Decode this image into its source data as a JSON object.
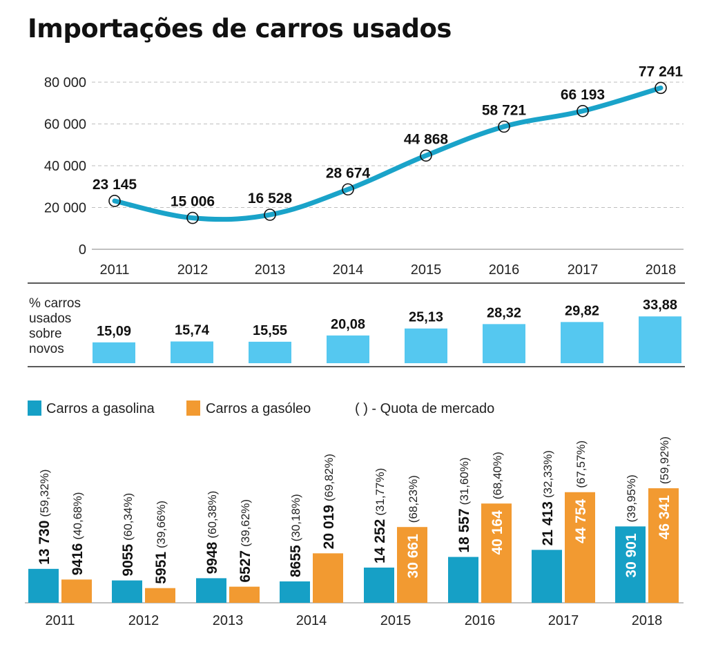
{
  "title": "Importações de carros usados",
  "colors": {
    "line": "#1aa3c9",
    "share_bar": "#55c8f0",
    "gasolina": "#16a0c6",
    "gasoleo": "#f29a31"
  },
  "chart_data": [
    {
      "type": "line",
      "name": "imports",
      "x": [
        "2011",
        "2012",
        "2013",
        "2014",
        "2015",
        "2016",
        "2017",
        "2018"
      ],
      "values": [
        23145,
        15006,
        16528,
        28674,
        44868,
        58721,
        66193,
        77241
      ],
      "labels": [
        "23 145",
        "15 006",
        "16 528",
        "28 674",
        "44 868",
        "58 721",
        "66 193",
        "77 241"
      ],
      "ylim": [
        0,
        80000
      ],
      "yticks": [
        "0",
        "20 000",
        "40 000",
        "60 000",
        "80 000"
      ],
      "grid": true
    },
    {
      "type": "bar",
      "name": "share",
      "label_lines": [
        "% carros",
        "usados",
        "sobre",
        "novos"
      ],
      "categories": [
        "2011",
        "2012",
        "2013",
        "2014",
        "2015",
        "2016",
        "2017",
        "2018"
      ],
      "values": [
        15.09,
        15.74,
        15.55,
        20.08,
        25.13,
        28.32,
        29.82,
        33.88
      ],
      "labels": [
        "15,09",
        "15,74",
        "15,55",
        "20,08",
        "25,13",
        "28,32",
        "29,82",
        "33,88"
      ]
    },
    {
      "type": "bar",
      "name": "fuel",
      "legend": [
        "Carros a gasolina",
        "Carros a gasóleo",
        "( ) - Quota de mercado"
      ],
      "categories": [
        "2011",
        "2012",
        "2013",
        "2014",
        "2015",
        "2016",
        "2017",
        "2018"
      ],
      "series": [
        {
          "name": "Carros a gasolina",
          "values": [
            13730,
            9055,
            9948,
            8655,
            14252,
            18557,
            21413,
            30901
          ],
          "labels": [
            "13 730",
            "9055",
            "9948",
            "8655",
            "14 252",
            "18 557",
            "21 413",
            "30 901"
          ],
          "shares": [
            "(59,32%)",
            "(60,34%)",
            "(60,38%)",
            "(30,18%)",
            "(31,77%)",
            "(31,60%)",
            "(32,33%)",
            "(39,95%)"
          ]
        },
        {
          "name": "Carros a gasóleo",
          "values": [
            9416,
            5951,
            6527,
            20019,
            30661,
            40164,
            44754,
            46341
          ],
          "labels": [
            "9416",
            "5951",
            "6527",
            "20 019",
            "30 661",
            "40 164",
            "44 754",
            "46 341"
          ],
          "shares": [
            "(40,68%)",
            "(39,66%)",
            "(39,62%)",
            "(69,82%)",
            "(68,23%)",
            "(68,40%)",
            "(67,57%)",
            "(59,92%)"
          ]
        }
      ]
    }
  ]
}
